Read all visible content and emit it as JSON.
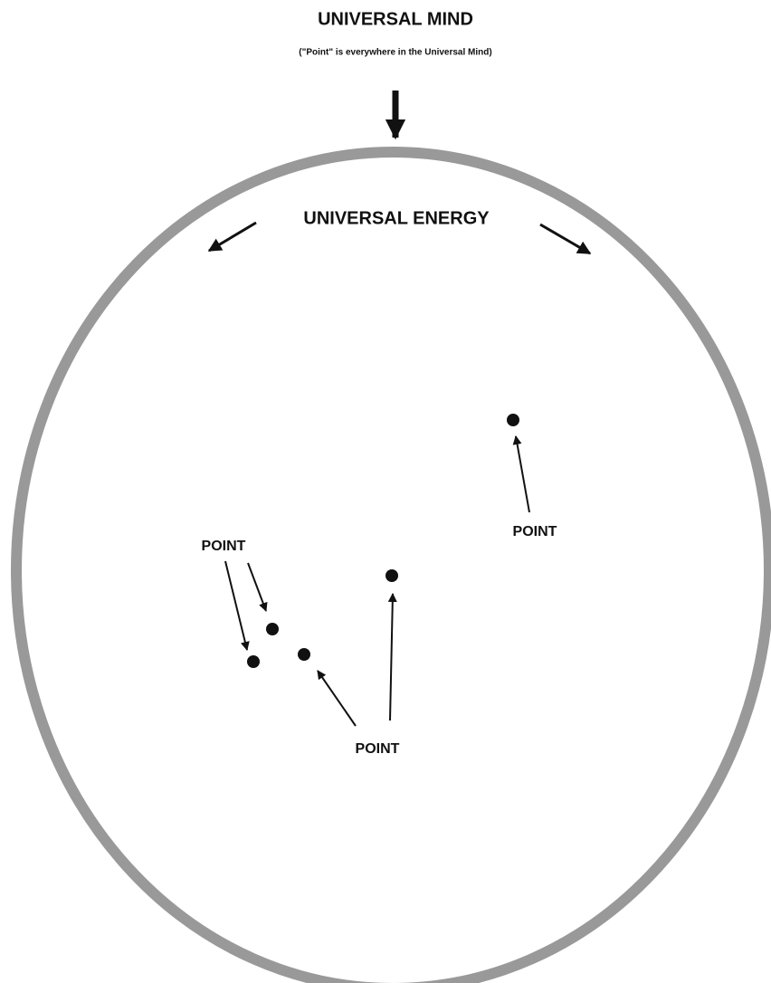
{
  "header": {
    "title": "UNIVERSAL MIND",
    "subtitle": "(\"Point\" is everywhere in the Universal Mind)"
  },
  "energy_label": "UNIVERSAL ENERGY",
  "point_labels": [
    "POINT",
    "POINT",
    "POINT"
  ]
}
